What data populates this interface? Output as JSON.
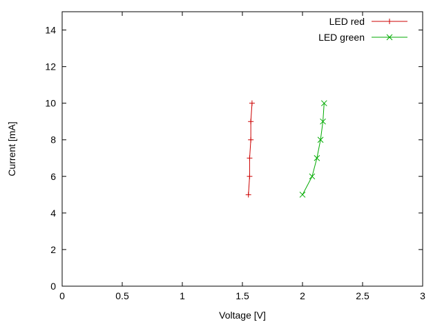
{
  "chart_data": {
    "type": "line",
    "title": "",
    "xlabel": "Voltage [V]",
    "ylabel": "Current [mA]",
    "xlim": [
      0,
      3
    ],
    "ylim": [
      0,
      15
    ],
    "xticks": [
      0,
      0.5,
      1,
      1.5,
      2,
      2.5,
      3
    ],
    "xtick_labels": [
      "0",
      "0.5",
      "1",
      "1.5",
      "2",
      "2.5",
      "3"
    ],
    "yticks": [
      0,
      2,
      4,
      6,
      8,
      10,
      12,
      14
    ],
    "ytick_labels": [
      "0",
      "2",
      "4",
      "6",
      "8",
      "10",
      "12",
      "14"
    ],
    "grid": false,
    "border_color": "#000000",
    "legend_position": "top-right",
    "series": [
      {
        "name": "LED red",
        "color": "#cc0000",
        "marker": "plus",
        "points": [
          [
            1.55,
            5
          ],
          [
            1.56,
            6
          ],
          [
            1.56,
            7
          ],
          [
            1.57,
            8
          ],
          [
            1.57,
            9
          ],
          [
            1.58,
            10
          ]
        ]
      },
      {
        "name": "LED green",
        "color": "#00aa00",
        "marker": "x",
        "points": [
          [
            2.0,
            5
          ],
          [
            2.08,
            6
          ],
          [
            2.12,
            7
          ],
          [
            2.15,
            8
          ],
          [
            2.17,
            9
          ],
          [
            2.18,
            10
          ]
        ]
      }
    ]
  }
}
